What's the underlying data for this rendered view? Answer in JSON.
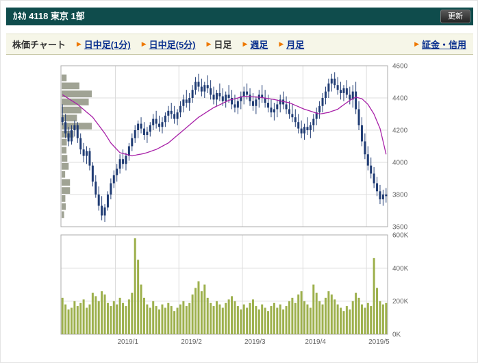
{
  "header": {
    "title": "ｶﾈｶ 4118 東京 1部",
    "refresh_label": "更新"
  },
  "nav": {
    "label": "株価チャート",
    "tabs": [
      {
        "label": "日中足(1分)",
        "active": false
      },
      {
        "label": "日中足(5分)",
        "active": false
      },
      {
        "label": "日足",
        "active": true
      },
      {
        "label": "週足",
        "active": false
      },
      {
        "label": "月足",
        "active": false
      }
    ],
    "right_link": "証金・信用"
  },
  "colors": {
    "header_bg": "#0F4C4C",
    "nav_bg": "#F6F6E8",
    "link": "#0B318F",
    "accent_arrow": "#EE7800",
    "candle": "#203C74",
    "ma_line": "#A821A8",
    "volume_bar": "#9DB04C",
    "profile_bar": "#A0A394",
    "grid": "#DCDCDC",
    "plot_border": "#ABABAB",
    "axis_text": "#666666"
  },
  "chart_data": {
    "type": "candlestick",
    "title": "",
    "x_labels": [
      "2019/1",
      "2019/2",
      "2019/3",
      "2019/4",
      "2019/5"
    ],
    "x_label_indices": [
      18,
      39,
      60,
      80,
      101
    ],
    "price_axis": {
      "min": 3600,
      "max": 4600,
      "ticks": [
        4600,
        4400,
        4200,
        4000,
        3800,
        3600
      ]
    },
    "volume_axis": {
      "max": 600,
      "tick_values": [
        600,
        400,
        200,
        0
      ],
      "tick_labels": [
        "600K",
        "400K",
        "200K",
        "0K"
      ]
    },
    "candles": [
      [
        4280,
        4360,
        4230,
        4250
      ],
      [
        4250,
        4300,
        4150,
        4180
      ],
      [
        4180,
        4220,
        4100,
        4130
      ],
      [
        4130,
        4230,
        4110,
        4200
      ],
      [
        4200,
        4260,
        4160,
        4230
      ],
      [
        4230,
        4250,
        4120,
        4150
      ],
      [
        4150,
        4180,
        4050,
        4080
      ],
      [
        4080,
        4120,
        4000,
        4040
      ],
      [
        4040,
        4100,
        3990,
        4070
      ],
      [
        4070,
        4090,
        3950,
        3980
      ],
      [
        3980,
        4000,
        3850,
        3880
      ],
      [
        3880,
        3920,
        3780,
        3800
      ],
      [
        3800,
        3850,
        3700,
        3730
      ],
      [
        3730,
        3790,
        3640,
        3670
      ],
      [
        3670,
        3740,
        3630,
        3720
      ],
      [
        3720,
        3820,
        3700,
        3800
      ],
      [
        3800,
        3900,
        3770,
        3870
      ],
      [
        3870,
        3950,
        3840,
        3920
      ],
      [
        3920,
        3990,
        3880,
        3960
      ],
      [
        3960,
        4050,
        3930,
        4020
      ],
      [
        4020,
        4080,
        3960,
        3990
      ],
      [
        3990,
        4060,
        3950,
        4040
      ],
      [
        4040,
        4120,
        4010,
        4100
      ],
      [
        4100,
        4180,
        4070,
        4150
      ],
      [
        4150,
        4230,
        4120,
        4200
      ],
      [
        4200,
        4260,
        4150,
        4240
      ],
      [
        4240,
        4280,
        4180,
        4210
      ],
      [
        4210,
        4250,
        4140,
        4170
      ],
      [
        4170,
        4220,
        4120,
        4190
      ],
      [
        4190,
        4250,
        4160,
        4230
      ],
      [
        4230,
        4300,
        4200,
        4270
      ],
      [
        4270,
        4320,
        4210,
        4240
      ],
      [
        4240,
        4290,
        4190,
        4220
      ],
      [
        4220,
        4280,
        4180,
        4250
      ],
      [
        4250,
        4310,
        4220,
        4290
      ],
      [
        4290,
        4350,
        4250,
        4320
      ],
      [
        4320,
        4370,
        4270,
        4300
      ],
      [
        4300,
        4350,
        4240,
        4270
      ],
      [
        4270,
        4330,
        4230,
        4310
      ],
      [
        4310,
        4380,
        4280,
        4350
      ],
      [
        4350,
        4420,
        4310,
        4390
      ],
      [
        4390,
        4450,
        4340,
        4370
      ],
      [
        4370,
        4430,
        4320,
        4400
      ],
      [
        4400,
        4480,
        4370,
        4450
      ],
      [
        4450,
        4530,
        4420,
        4500
      ],
      [
        4500,
        4550,
        4440,
        4470
      ],
      [
        4470,
        4520,
        4410,
        4440
      ],
      [
        4440,
        4500,
        4400,
        4480
      ],
      [
        4480,
        4540,
        4430,
        4460
      ],
      [
        4460,
        4510,
        4390,
        4420
      ],
      [
        4420,
        4470,
        4360,
        4390
      ],
      [
        4390,
        4450,
        4350,
        4430
      ],
      [
        4430,
        4490,
        4380,
        4410
      ],
      [
        4410,
        4460,
        4350,
        4380
      ],
      [
        4380,
        4440,
        4340,
        4420
      ],
      [
        4420,
        4480,
        4370,
        4400
      ],
      [
        4400,
        4450,
        4330,
        4360
      ],
      [
        4360,
        4420,
        4310,
        4340
      ],
      [
        4340,
        4400,
        4300,
        4380
      ],
      [
        4380,
        4440,
        4330,
        4410
      ],
      [
        4410,
        4470,
        4360,
        4440
      ],
      [
        4440,
        4490,
        4390,
        4420
      ],
      [
        4420,
        4460,
        4350,
        4380
      ],
      [
        4380,
        4430,
        4320,
        4350
      ],
      [
        4350,
        4410,
        4300,
        4390
      ],
      [
        4390,
        4450,
        4340,
        4420
      ],
      [
        4420,
        4480,
        4370,
        4400
      ],
      [
        4400,
        4450,
        4340,
        4370
      ],
      [
        4370,
        4420,
        4310,
        4340
      ],
      [
        4340,
        4390,
        4280,
        4310
      ],
      [
        4310,
        4370,
        4260,
        4330
      ],
      [
        4330,
        4390,
        4280,
        4360
      ],
      [
        4360,
        4420,
        4310,
        4390
      ],
      [
        4390,
        4440,
        4330,
        4360
      ],
      [
        4360,
        4410,
        4300,
        4330
      ],
      [
        4330,
        4380,
        4270,
        4300
      ],
      [
        4300,
        4360,
        4250,
        4280
      ],
      [
        4280,
        4330,
        4220,
        4250
      ],
      [
        4250,
        4300,
        4180,
        4210
      ],
      [
        4210,
        4260,
        4150,
        4180
      ],
      [
        4180,
        4240,
        4140,
        4220
      ],
      [
        4220,
        4280,
        4170,
        4200
      ],
      [
        4200,
        4250,
        4150,
        4230
      ],
      [
        4230,
        4300,
        4190,
        4270
      ],
      [
        4270,
        4340,
        4230,
        4310
      ],
      [
        4310,
        4380,
        4270,
        4350
      ],
      [
        4350,
        4430,
        4310,
        4400
      ],
      [
        4400,
        4470,
        4360,
        4440
      ],
      [
        4440,
        4520,
        4400,
        4490
      ],
      [
        4490,
        4550,
        4440,
        4520
      ],
      [
        4520,
        4560,
        4460,
        4480
      ],
      [
        4480,
        4530,
        4420,
        4450
      ],
      [
        4450,
        4500,
        4390,
        4430
      ],
      [
        4430,
        4480,
        4380,
        4460
      ],
      [
        4460,
        4510,
        4400,
        4420
      ],
      [
        4420,
        4470,
        4360,
        4390
      ],
      [
        4390,
        4480,
        4340,
        4440
      ],
      [
        4440,
        4500,
        4300,
        4330
      ],
      [
        4330,
        4380,
        4200,
        4230
      ],
      [
        4230,
        4280,
        4100,
        4130
      ],
      [
        4130,
        4180,
        4020,
        4050
      ],
      [
        4050,
        4100,
        3950,
        3980
      ],
      [
        3980,
        4030,
        3900,
        3930
      ],
      [
        3930,
        3970,
        3840,
        3870
      ],
      [
        3870,
        3910,
        3790,
        3820
      ],
      [
        3820,
        3860,
        3740,
        3770
      ],
      [
        3770,
        3830,
        3730,
        3800
      ],
      [
        3800,
        3840,
        3750,
        3790
      ]
    ],
    "volumes_k": [
      220,
      180,
      150,
      160,
      200,
      170,
      190,
      210,
      160,
      180,
      250,
      230,
      200,
      260,
      240,
      190,
      170,
      200,
      180,
      220,
      190,
      170,
      210,
      250,
      580,
      450,
      300,
      220,
      180,
      160,
      200,
      170,
      150,
      180,
      160,
      190,
      170,
      140,
      160,
      180,
      200,
      170,
      190,
      240,
      280,
      320,
      260,
      300,
      220,
      190,
      170,
      200,
      180,
      160,
      190,
      210,
      230,
      200,
      170,
      150,
      180,
      160,
      190,
      210,
      170,
      150,
      180,
      160,
      140,
      170,
      190,
      160,
      180,
      150,
      170,
      200,
      220,
      190,
      240,
      260,
      200,
      180,
      160,
      300,
      250,
      200,
      180,
      220,
      260,
      240,
      210,
      180,
      160,
      140,
      170,
      150,
      200,
      250,
      220,
      180,
      160,
      190,
      170,
      460,
      280,
      200,
      180,
      190
    ],
    "ma_line": [
      4420,
      4408,
      4396,
      4384,
      4372,
      4360,
      4344,
      4328,
      4312,
      4296,
      4280,
      4255,
      4230,
      4205,
      4180,
      4150,
      4120,
      4100,
      4080,
      4060,
      4055,
      4050,
      4045,
      4040,
      4044,
      4048,
      4051,
      4055,
      4061,
      4067,
      4074,
      4080,
      4090,
      4100,
      4110,
      4120,
      4136,
      4152,
      4168,
      4184,
      4200,
      4216,
      4232,
      4248,
      4264,
      4280,
      4292,
      4304,
      4316,
      4328,
      4340,
      4349,
      4358,
      4367,
      4376,
      4385,
      4390,
      4395,
      4400,
      4405,
      4410,
      4409,
      4408,
      4407,
      4406,
      4405,
      4402,
      4399,
      4396,
      4393,
      4390,
      4386,
      4382,
      4378,
      4374,
      4370,
      4362,
      4354,
      4346,
      4338,
      4330,
      4324,
      4318,
      4312,
      4306,
      4300,
      4303,
      4307,
      4310,
      4317,
      4323,
      4330,
      4344,
      4358,
      4371,
      4385,
      4395,
      4405,
      4400,
      4395,
      4378,
      4360,
      4330,
      4300,
      4255,
      4210,
      4130,
      4050
    ]
  }
}
